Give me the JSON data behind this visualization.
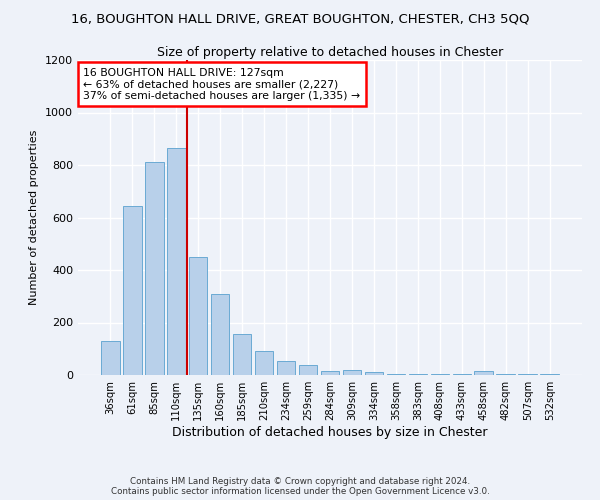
{
  "title": "16, BOUGHTON HALL DRIVE, GREAT BOUGHTON, CHESTER, CH3 5QQ",
  "subtitle": "Size of property relative to detached houses in Chester",
  "xlabel": "Distribution of detached houses by size in Chester",
  "ylabel": "Number of detached properties",
  "categories": [
    "36sqm",
    "61sqm",
    "85sqm",
    "110sqm",
    "135sqm",
    "160sqm",
    "185sqm",
    "210sqm",
    "234sqm",
    "259sqm",
    "284sqm",
    "309sqm",
    "334sqm",
    "358sqm",
    "383sqm",
    "408sqm",
    "433sqm",
    "458sqm",
    "482sqm",
    "507sqm",
    "532sqm"
  ],
  "values": [
    130,
    645,
    810,
    865,
    450,
    308,
    158,
    90,
    52,
    40,
    15,
    20,
    10,
    5,
    2,
    2,
    2,
    15,
    2,
    2,
    2
  ],
  "bar_color": "#b8d0ea",
  "bar_edge_color": "#6aaad4",
  "vline_color": "#cc0000",
  "annotation_title": "16 BOUGHTON HALL DRIVE: 127sqm",
  "annotation_line1": "← 63% of detached houses are smaller (2,227)",
  "annotation_line2": "37% of semi-detached houses are larger (1,335) →",
  "ylim": [
    0,
    1200
  ],
  "yticks": [
    0,
    200,
    400,
    600,
    800,
    1000,
    1200
  ],
  "footer1": "Contains HM Land Registry data © Crown copyright and database right 2024.",
  "footer2": "Contains public sector information licensed under the Open Government Licence v3.0.",
  "bg_color": "#eef2f9",
  "grid_color": "#ffffff",
  "title_fontsize": 9.5,
  "subtitle_fontsize": 9,
  "vline_x_index": 4
}
